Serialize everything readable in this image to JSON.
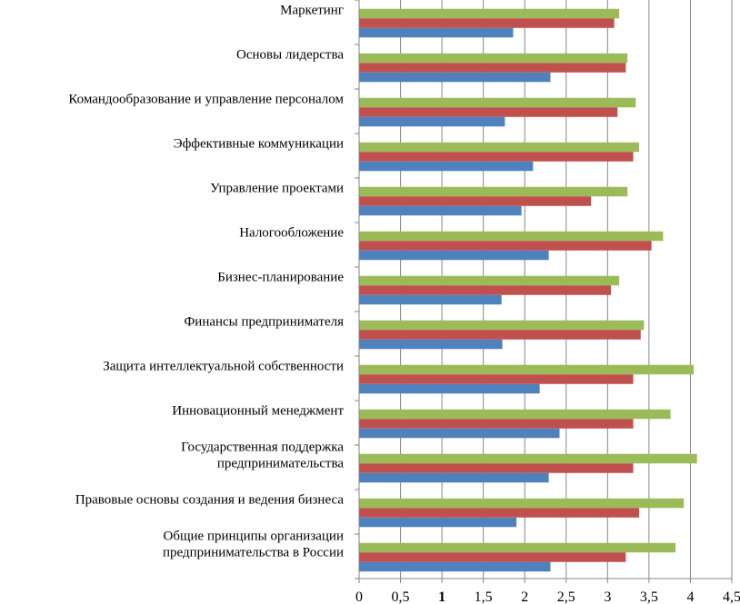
{
  "chart_data": {
    "type": "bar",
    "orientation": "horizontal",
    "title": "",
    "xlabel": "",
    "ylabel": "",
    "xlim": [
      0,
      4.5
    ],
    "ticks": [
      "0",
      "0,5",
      "1",
      "1,5",
      "2",
      "2,5",
      "3",
      "3,5",
      "4",
      "4,5"
    ],
    "tick_values": [
      0,
      0.5,
      1,
      1.5,
      2,
      2.5,
      3,
      3.5,
      4,
      4.5
    ],
    "grid": true,
    "legend": "none",
    "categories": [
      [
        "Маркетинг"
      ],
      [
        "Основы лидерства"
      ],
      [
        "Командообразование и управление персоналом"
      ],
      [
        "Эффективные коммуникации"
      ],
      [
        "Управление проектами"
      ],
      [
        "Налогообложение"
      ],
      [
        "Бизнес-планирование"
      ],
      [
        "Финансы предпринимателя"
      ],
      [
        "Защита интеллектуальной собственности"
      ],
      [
        "Инновационный менеджмент"
      ],
      [
        "Государственная поддержка",
        "предпринимательства"
      ],
      [
        "Правовые основы создания и ведения бизнеса"
      ],
      [
        "Общие принципы организации",
        "предпринимательства в России"
      ]
    ],
    "series": [
      {
        "name": "series-1",
        "color": "#9bbb59",
        "values": [
          3.14,
          3.24,
          3.34,
          3.38,
          3.24,
          3.67,
          3.14,
          3.44,
          4.04,
          3.76,
          4.08,
          3.92,
          3.82
        ]
      },
      {
        "name": "series-2",
        "color": "#c0504d",
        "values": [
          3.08,
          3.22,
          3.12,
          3.31,
          2.8,
          3.53,
          3.04,
          3.4,
          3.31,
          3.31,
          3.31,
          3.38,
          3.22
        ]
      },
      {
        "name": "series-3",
        "color": "#4f81bd",
        "values": [
          1.86,
          2.31,
          1.76,
          2.1,
          1.96,
          2.29,
          1.72,
          1.73,
          2.18,
          2.42,
          2.29,
          1.9,
          2.31
        ]
      }
    ]
  }
}
